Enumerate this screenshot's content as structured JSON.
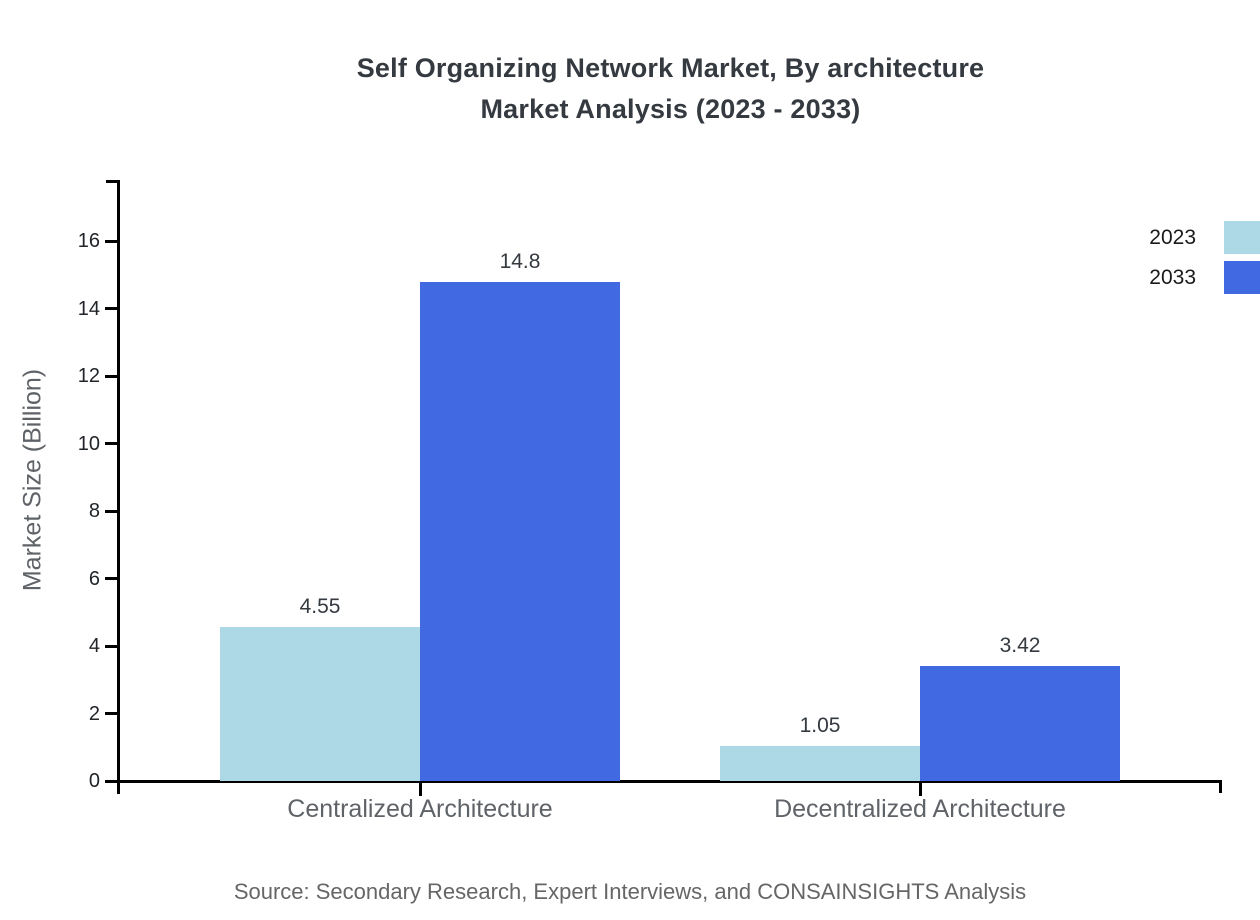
{
  "title": {
    "line1": "Self Organizing Network Market, By architecture",
    "line2": "Market Analysis (2023 - 2033)"
  },
  "source": "Source: Secondary Research, Expert Interviews, and CONSAINSIGHTS Analysis",
  "chart_data": {
    "type": "bar",
    "title": "Self Organizing Network Market, By architecture Market Analysis (2023 - 2033)",
    "categories": [
      "Centralized Architecture",
      "Decentralized Architecture"
    ],
    "series": [
      {
        "name": "2023",
        "color": "#ADD8E6",
        "values": [
          4.55,
          1.05
        ]
      },
      {
        "name": "2033",
        "color": "#4169E1",
        "values": [
          14.8,
          3.42
        ]
      }
    ],
    "value_labels": [
      "4.55",
      "14.8",
      "1.05",
      "3.42"
    ],
    "xlabel": "",
    "ylabel": "Market Size (Billion)",
    "ylim": [
      0,
      17.8
    ],
    "yticks": [
      0,
      2,
      4,
      6,
      8,
      10,
      12,
      14,
      16
    ],
    "grid": false,
    "legend_position": "top-right",
    "axis_color": "#000000",
    "text_colors": {
      "title": "#343a40",
      "ticks": "#212529",
      "categories": "#5f6368",
      "source": "#666666"
    }
  }
}
